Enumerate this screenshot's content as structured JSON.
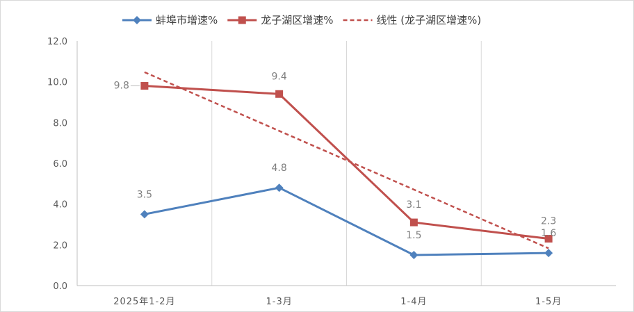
{
  "chart_data": {
    "type": "line",
    "categories": [
      "2025年1-2月",
      "1-3月",
      "1-4月",
      "1-5月"
    ],
    "ylim": [
      0,
      12
    ],
    "yticks": [
      "0.0",
      "2.0",
      "4.0",
      "6.0",
      "8.0",
      "10.0",
      "12.0"
    ],
    "grid": "vertical",
    "legend_position": "top",
    "series": [
      {
        "name": "蚌埠市增速%",
        "values": [
          3.5,
          4.8,
          1.5,
          1.6
        ],
        "labels": [
          "3.5",
          "4.8",
          "1.5",
          "1.6"
        ],
        "color": "#4f81bd",
        "marker": "diamond"
      },
      {
        "name": "龙子湖区增速%",
        "values": [
          9.8,
          9.4,
          3.1,
          2.3
        ],
        "labels": [
          "9.8",
          "9.4",
          "3.1",
          "2.3"
        ],
        "color": "#c0504d",
        "marker": "square"
      }
    ],
    "trendline": {
      "name": "线性 (龙子湖区增速%)",
      "of_series": "龙子湖区增速%",
      "type": "linear",
      "color": "#c0504d",
      "style": "dashed"
    }
  }
}
